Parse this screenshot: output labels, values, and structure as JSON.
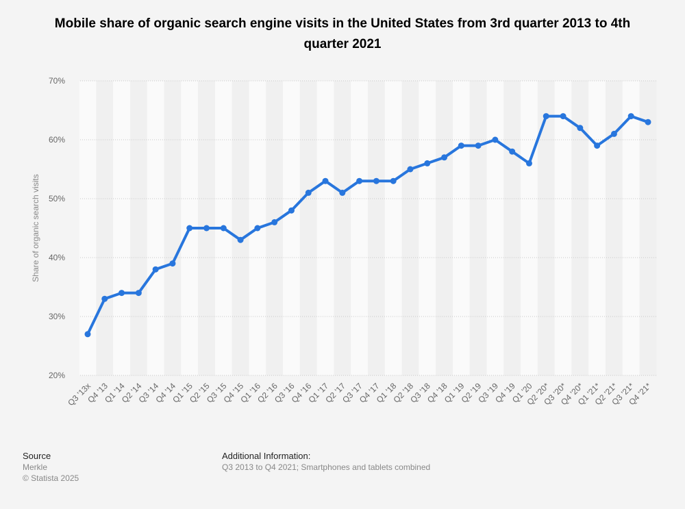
{
  "chart_data": {
    "type": "line",
    "title": "Mobile share of organic search engine visits in the United States from 3rd quarter 2013 to 4th quarter 2021",
    "xlabel": "",
    "ylabel": "Share of organic search visits",
    "ylim": [
      20,
      70
    ],
    "yticks": [
      20,
      30,
      40,
      50,
      60,
      70
    ],
    "ytick_labels": [
      "20%",
      "30%",
      "40%",
      "50%",
      "60%",
      "70%"
    ],
    "grid": true,
    "color": "#2876dd",
    "categories": [
      "Q3 '13x",
      "Q4 '13",
      "Q1 '14",
      "Q2 '14",
      "Q3 '14",
      "Q4 '14",
      "Q1 '15",
      "Q2 '15",
      "Q3 '15",
      "Q4 '15",
      "Q1 '16",
      "Q2 '16",
      "Q3 '16",
      "Q4 '16",
      "Q1 '17",
      "Q2 '17",
      "Q3 '17",
      "Q4 '17",
      "Q1 '18",
      "Q2 '18",
      "Q3 '18",
      "Q4 '18",
      "Q1 '19",
      "Q2 '19",
      "Q3 '19",
      "Q4 '19",
      "Q1 '20",
      "Q2 '20*",
      "Q3 '20*",
      "Q4 '20*",
      "Q1 '21*",
      "Q2 '21*",
      "Q3 '21*",
      "Q4 '21*"
    ],
    "values": [
      27,
      33,
      34,
      34,
      38,
      39,
      45,
      45,
      45,
      43,
      45,
      46,
      48,
      51,
      53,
      51,
      53,
      53,
      53,
      55,
      56,
      57,
      59,
      59,
      60,
      58,
      56,
      64,
      64,
      62,
      59,
      61,
      64,
      63
    ]
  },
  "footer": {
    "source_heading": "Source",
    "source": "Merkle",
    "copyright": "© Statista 2025",
    "info_heading": "Additional Information:",
    "info": "Q3 2013 to Q4 2021; Smartphones and tablets combined"
  }
}
